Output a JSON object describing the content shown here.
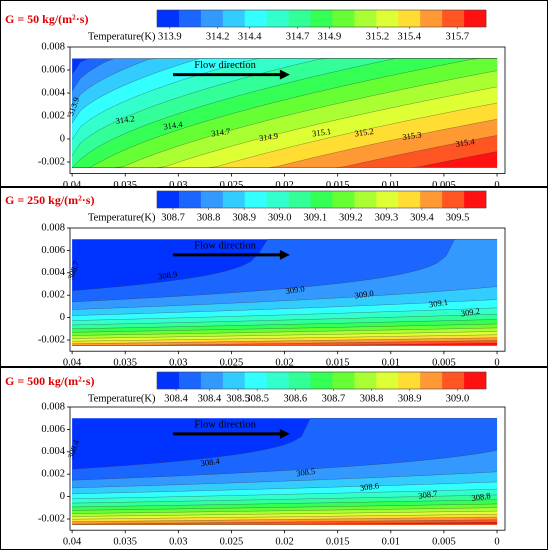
{
  "chart_data": [
    {
      "type": "contour",
      "title": "G = 50 kg/(m²·s)",
      "colorbar_label": "Temperature(K)",
      "colorbar_ticks": [
        313.9,
        314.2,
        314.4,
        314.7,
        314.9,
        315.2,
        315.4,
        315.7
      ],
      "clim": [
        313.82,
        315.88
      ],
      "colors": [
        "#0033ff",
        "#1a66ff",
        "#3399ff",
        "#33ccff",
        "#33ffff",
        "#33ffcc",
        "#33ff99",
        "#33ff55",
        "#66ff33",
        "#aaff33",
        "#ddff33",
        "#ffdd33",
        "#ff9933",
        "#ff5522",
        "#ff1111"
      ],
      "annotation": "Flow direction",
      "xlim": [
        0.0402,
        -0.00075
      ],
      "xticks": [
        0.04,
        0.035,
        0.03,
        0.025,
        0.02,
        0.015,
        0.01,
        0.005,
        0
      ],
      "ylim": [
        -0.003,
        0.008
      ],
      "yticks": [
        -0.002,
        0,
        0.002,
        0.004,
        0.006,
        0.008
      ],
      "contour_labels": [
        {
          "x": 0.0398,
          "y": 0.0028,
          "value": 313.9
        },
        {
          "x": 0.035,
          "y": 0.0016,
          "value": 314.2
        },
        {
          "x": 0.0305,
          "y": 0.0011,
          "value": 314.4
        },
        {
          "x": 0.026,
          "y": 0.0005,
          "value": 314.7
        },
        {
          "x": 0.0215,
          "y": 0.0001,
          "value": 314.9
        },
        {
          "x": 0.0165,
          "y": 0.0005,
          "value": 315.1
        },
        {
          "x": 0.0125,
          "y": 0.0005,
          "value": 315.2
        },
        {
          "x": 0.008,
          "y": 0.0002,
          "value": 315.3
        },
        {
          "x": 0.003,
          "y": -0.0004,
          "value": 315.4
        }
      ]
    },
    {
      "type": "contour",
      "title": "G = 250 kg/(m²·s)",
      "colorbar_label": "Temperature(K)",
      "colorbar_ticks": [
        308.7,
        308.8,
        308.9,
        {
          "value": 309,
          "label": "309.0"
        },
        309.1,
        309.2,
        309.3,
        309.4,
        309.5
      ],
      "clim": [
        308.655,
        309.58
      ],
      "colors": [
        "#0033ff",
        "#1a66ff",
        "#3399ff",
        "#33ccff",
        "#33ffff",
        "#33ffcc",
        "#33ff99",
        "#33ff55",
        "#66ff33",
        "#aaff33",
        "#ddff33",
        "#ffdd33",
        "#ff9933",
        "#ff5522",
        "#ff1111"
      ],
      "annotation": "Flow direction",
      "xlim": [
        0.0402,
        -0.00075
      ],
      "xticks": [
        0.04,
        0.035,
        0.03,
        0.025,
        0.02,
        0.015,
        0.01,
        0.005,
        0
      ],
      "ylim": [
        -0.003,
        0.008
      ],
      "yticks": [
        -0.002,
        0,
        0.002,
        0.004,
        0.006,
        0.008
      ],
      "contour_labels": [
        {
          "x": 0.0398,
          "y": 0.0042,
          "value": 308.7
        },
        {
          "x": 0.031,
          "y": 0.0037,
          "value": 308.9
        },
        {
          "x": 0.019,
          "y": 0.0024,
          "value": 309,
          "label": "309.0"
        },
        {
          "x": 0.0125,
          "y": 0.002,
          "value": 309,
          "label": "309.0"
        },
        {
          "x": 0.0055,
          "y": 0.0012,
          "value": 309.1
        },
        {
          "x": 0.0025,
          "y": 0.0004,
          "value": 309.2
        }
      ]
    },
    {
      "type": "contour",
      "title": "G = 500 kg/(m²·s)",
      "colorbar_label": "Temperature(K)",
      "colorbar_ticks": [
        {
          "value": 308.37,
          "label": "308.4"
        },
        {
          "value": 308.44,
          "label": "308.4"
        },
        {
          "value": 308.5,
          "label": "308.5"
        },
        {
          "value": 308.54,
          "label": "308.5"
        },
        {
          "value": 308.62,
          "label": "308.6"
        },
        {
          "value": 308.7,
          "label": "308.7"
        },
        {
          "value": 308.78,
          "label": "308.8"
        },
        {
          "value": 308.86,
          "label": "308.9"
        },
        {
          "value": 308.96,
          "label": "309.0"
        }
      ],
      "clim": [
        308.33,
        309.02
      ],
      "colors": [
        "#0033ff",
        "#1a66ff",
        "#3399ff",
        "#33ccff",
        "#33ffff",
        "#33ffcc",
        "#33ff99",
        "#33ff55",
        "#66ff33",
        "#aaff33",
        "#ddff33",
        "#ffdd33",
        "#ff9933",
        "#ff5522",
        "#ff1111"
      ],
      "annotation": "Flow direction",
      "xlim": [
        0.0402,
        -0.00075
      ],
      "xticks": [
        0.04,
        0.035,
        0.03,
        0.025,
        0.02,
        0.015,
        0.01,
        0.005,
        0
      ],
      "ylim": [
        -0.003,
        0.008
      ],
      "yticks": [
        -0.002,
        0,
        0.002,
        0.004,
        0.006,
        0.008
      ],
      "contour_labels": [
        {
          "x": 0.0398,
          "y": 0.0042,
          "value": 308.4
        },
        {
          "x": 0.027,
          "y": 0.003,
          "value": 308.4
        },
        {
          "x": 0.018,
          "y": 0.0021,
          "value": 308.5
        },
        {
          "x": 0.012,
          "y": 0.0008,
          "value": 308.6
        },
        {
          "x": 0.0065,
          "y": 0.0001,
          "value": 308.7
        },
        {
          "x": 0.0015,
          "y": -0.0001,
          "value": 308.8
        }
      ]
    }
  ]
}
